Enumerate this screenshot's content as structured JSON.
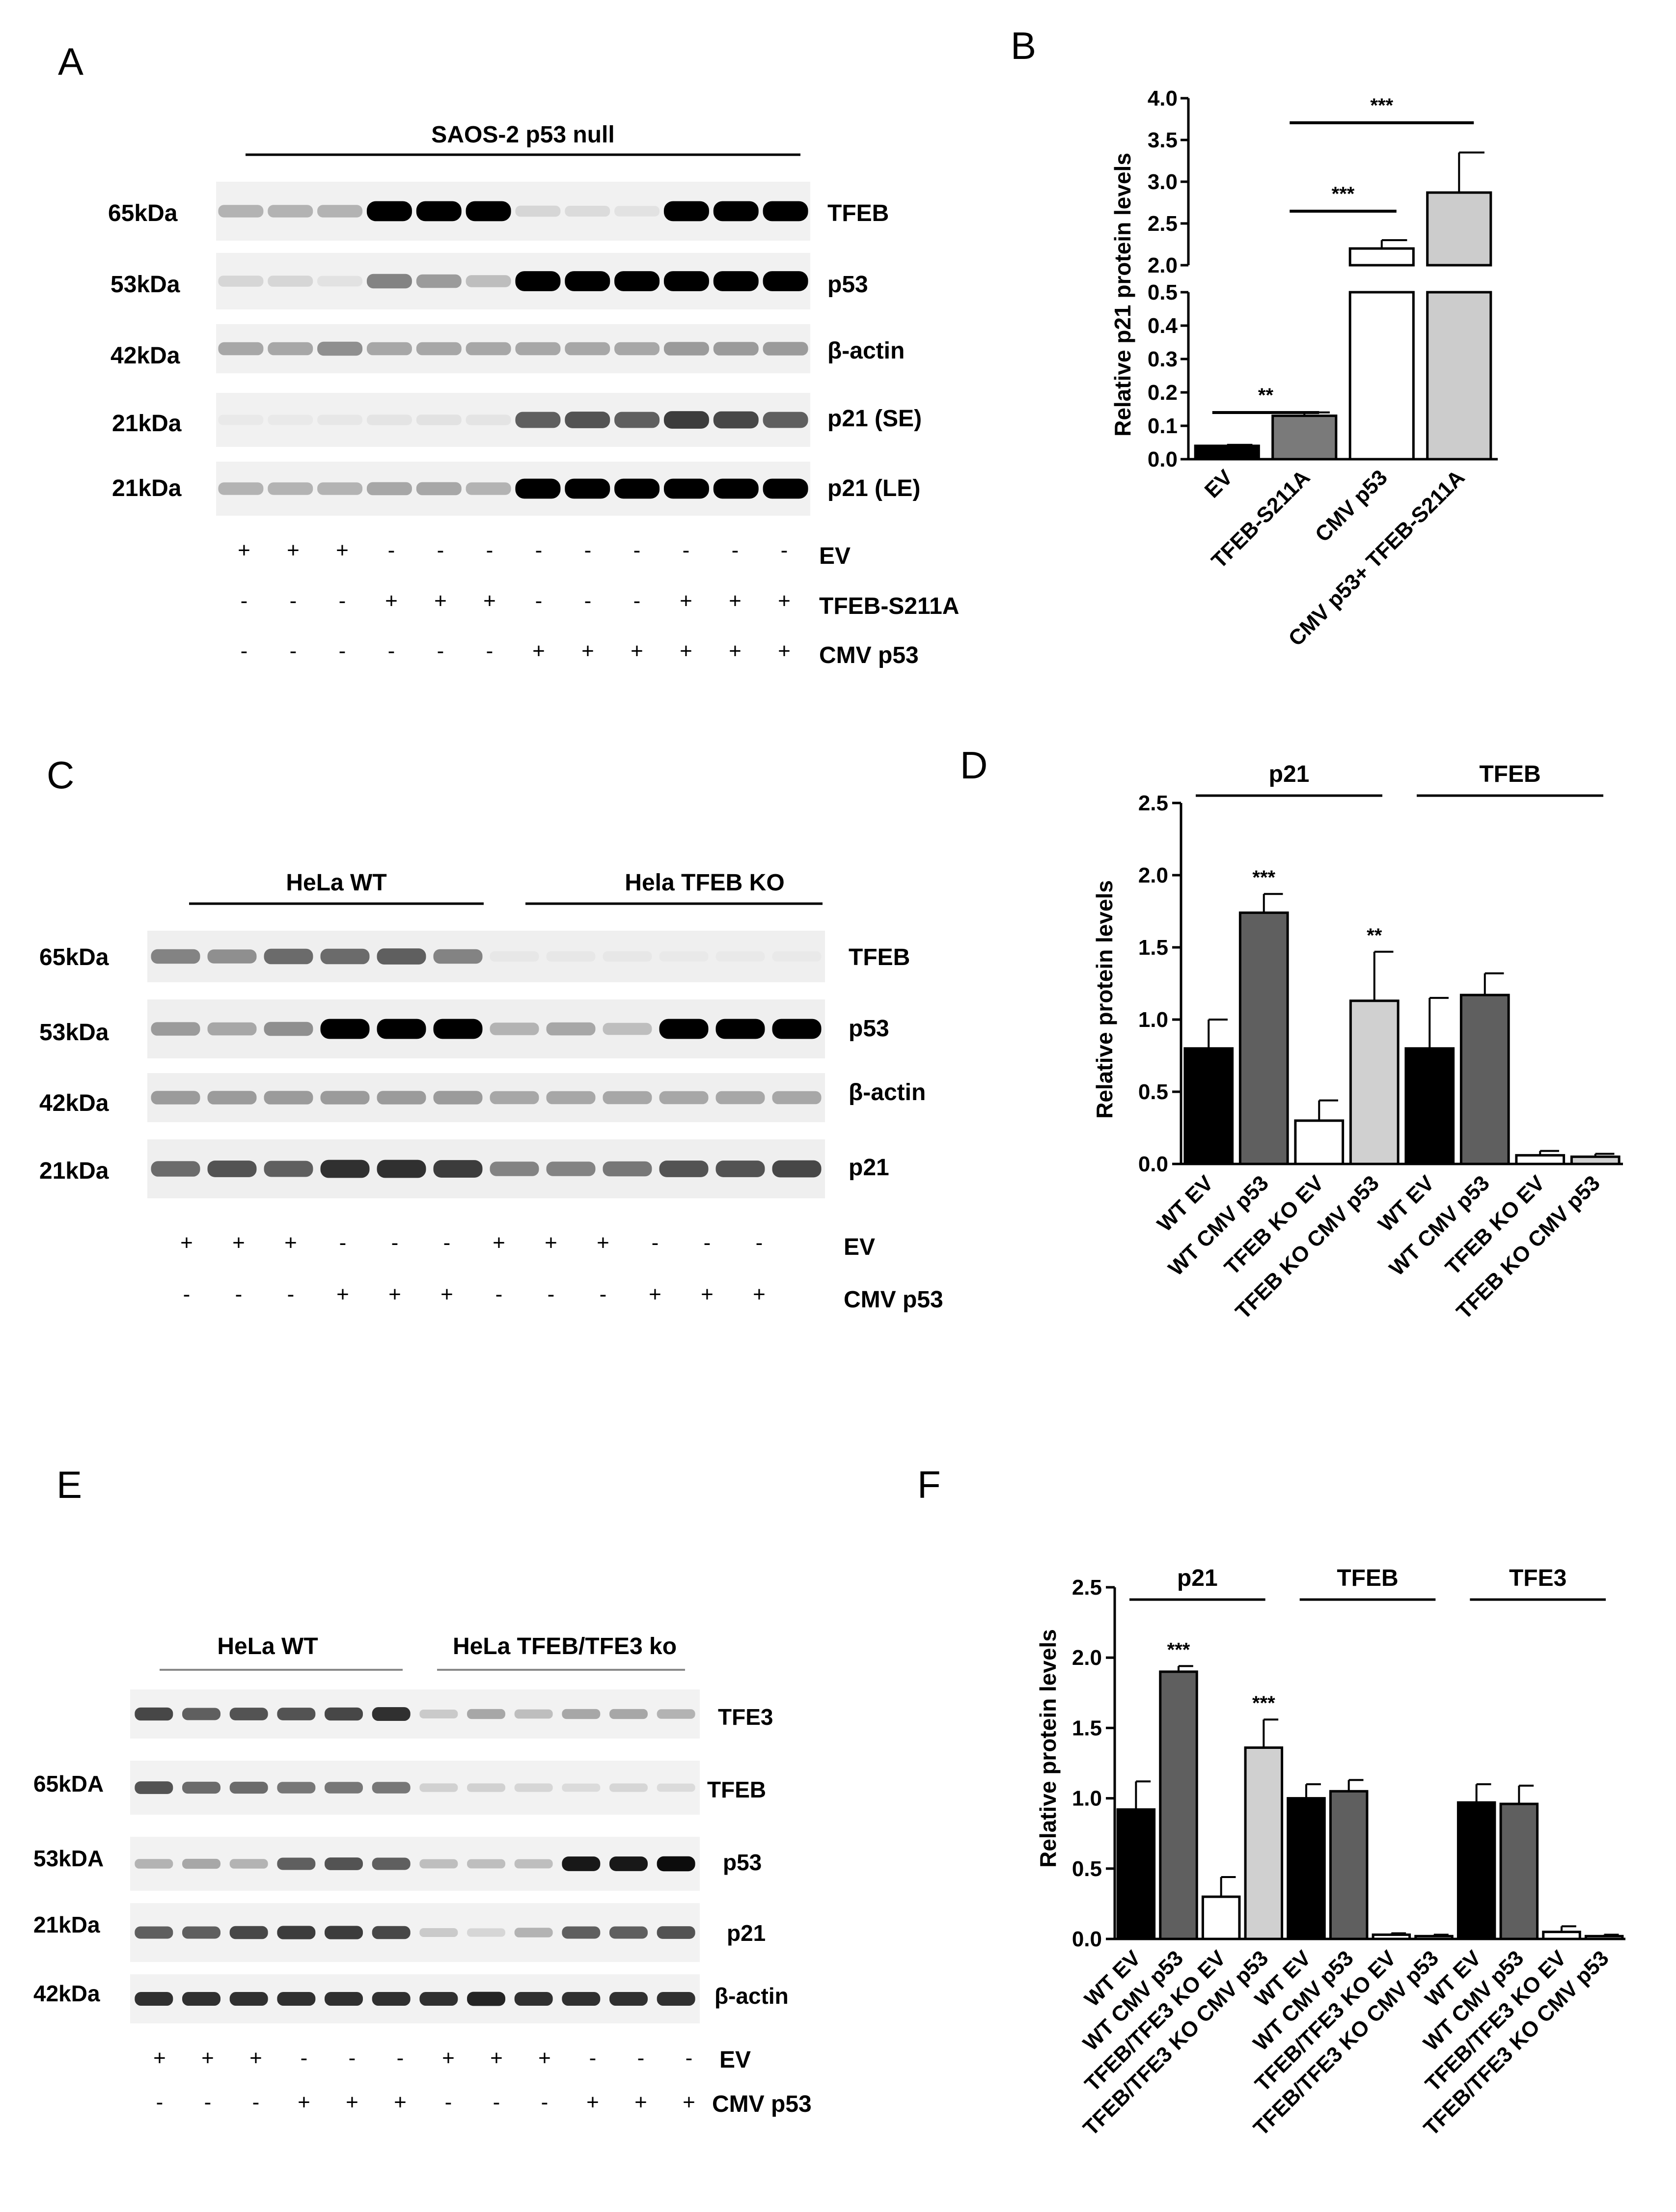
{
  "panels": {
    "A": {
      "letter": "A",
      "header": "SAOS-2 p53 null",
      "rows": [
        {
          "kda": "65kDa",
          "label": "TFEB"
        },
        {
          "kda": "53kDa",
          "label": "p53"
        },
        {
          "kda": "42kDa",
          "label": "β-actin"
        },
        {
          "kda": "21kDa",
          "label": "p21 (SE)"
        },
        {
          "kda": "21kDa",
          "label": "p21 (LE)"
        }
      ],
      "conditions": [
        {
          "label": "EV",
          "marks": [
            "+",
            "+",
            "+",
            "-",
            "-",
            "-",
            "-",
            "-",
            "-",
            "-",
            "-",
            "-"
          ]
        },
        {
          "label": "TFEB-S211A",
          "marks": [
            "-",
            "-",
            "-",
            "+",
            "+",
            "+",
            "-",
            "-",
            "-",
            "+",
            "+",
            "+"
          ]
        },
        {
          "label": "CMV p53",
          "marks": [
            "-",
            "-",
            "-",
            "-",
            "-",
            "-",
            "+",
            "+",
            "+",
            "+",
            "+",
            "+"
          ]
        }
      ],
      "bands": {
        "TFEB": [
          0.25,
          0.25,
          0.25,
          1,
          1,
          1,
          0.1,
          0.08,
          0.05,
          1,
          1,
          1
        ],
        "p53": [
          0.1,
          0.1,
          0.05,
          0.45,
          0.35,
          0.2,
          1,
          1,
          1,
          1,
          1,
          1
        ],
        "actin": [
          0.3,
          0.3,
          0.4,
          0.3,
          0.3,
          0.3,
          0.3,
          0.3,
          0.3,
          0.35,
          0.35,
          0.35
        ],
        "p21se": [
          0.02,
          0.02,
          0.03,
          0.04,
          0.05,
          0.04,
          0.6,
          0.65,
          0.6,
          0.75,
          0.7,
          0.6
        ],
        "p21le": [
          0.25,
          0.25,
          0.25,
          0.3,
          0.3,
          0.25,
          1,
          1,
          1,
          1,
          1,
          1
        ]
      }
    },
    "B": {
      "letter": "B",
      "chart_data": {
        "type": "bar",
        "categories": [
          "EV",
          "TFEB-S211A",
          "CMV p53",
          "CMV p53+ TFEB-S211A"
        ],
        "values": [
          0.04,
          0.13,
          2.2,
          2.87
        ],
        "errors": [
          0.003,
          0.01,
          0.1,
          0.48
        ],
        "colors": [
          "#000000",
          "#7a7a7a",
          "#ffffff",
          "#cccccc"
        ],
        "ylabel": "Relative p21 protein levels",
        "axis_break": {
          "lower": [
            0,
            0.5
          ],
          "upper": [
            2.0,
            4.0
          ]
        },
        "lower_ticks": [
          "0.0",
          "0.1",
          "0.2",
          "0.3",
          "0.4",
          "0.5"
        ],
        "upper_ticks": [
          "2.0",
          "2.5",
          "3.0",
          "3.5",
          "4.0"
        ],
        "significance": [
          {
            "from": "EV",
            "to": "TFEB-S211A",
            "label": "**"
          },
          {
            "from": "TFEB-S211A",
            "to": "CMV p53",
            "label": "***"
          },
          {
            "from": "TFEB-S211A",
            "to": "CMV p53+ TFEB-S211A",
            "label": "***"
          }
        ]
      }
    },
    "C": {
      "letter": "C",
      "groups": [
        "HeLa WT",
        "Hela TFEB KO"
      ],
      "rows": [
        {
          "kda": "65kDa",
          "label": "TFEB"
        },
        {
          "kda": "53kDa",
          "label": "p53"
        },
        {
          "kda": "42kDa",
          "label": "β-actin"
        },
        {
          "kda": "21kDa",
          "label": "p21"
        }
      ],
      "conditions": [
        {
          "label": "EV",
          "marks": [
            "+",
            "+",
            "+",
            "-",
            "-",
            "-",
            "+",
            "+",
            "+",
            "-",
            "-",
            "-"
          ]
        },
        {
          "label": "CMV p53",
          "marks": [
            "-",
            "-",
            "-",
            "+",
            "+",
            "+",
            "-",
            "-",
            "-",
            "+",
            "+",
            "+"
          ]
        }
      ],
      "bands": {
        "TFEB": [
          0.45,
          0.4,
          0.55,
          0.55,
          0.6,
          0.45,
          0.03,
          0.03,
          0.03,
          0.02,
          0.02,
          0.02
        ],
        "p53": [
          0.35,
          0.3,
          0.4,
          1,
          1,
          1,
          0.25,
          0.3,
          0.2,
          1,
          1,
          1
        ],
        "actin": [
          0.35,
          0.35,
          0.35,
          0.35,
          0.35,
          0.35,
          0.3,
          0.3,
          0.3,
          0.3,
          0.3,
          0.3
        ],
        "p21": [
          0.55,
          0.65,
          0.6,
          0.8,
          0.8,
          0.75,
          0.45,
          0.45,
          0.5,
          0.65,
          0.65,
          0.7
        ]
      }
    },
    "D": {
      "letter": "D",
      "group_labels": [
        "p21",
        "TFEB"
      ],
      "chart_data": {
        "type": "bar",
        "categories": [
          "WT EV",
          "WT CMV  p53",
          "TFEB KO EV",
          "TFEB KO CMV p53",
          "WT EV",
          "WT CMV  p53",
          "TFEB KO EV",
          "TFEB KO CMV p53"
        ],
        "values": [
          0.8,
          1.74,
          0.3,
          1.13,
          0.8,
          1.17,
          0.06,
          0.05
        ],
        "errors": [
          0.2,
          0.13,
          0.14,
          0.34,
          0.35,
          0.15,
          0.03,
          0.02
        ],
        "colors": [
          "#000000",
          "#5f5f5f",
          "#ffffff",
          "#d0d0d0",
          "#000000",
          "#5f5f5f",
          "#ffffff",
          "#d0d0d0"
        ],
        "significance": [
          "",
          "***",
          "",
          "**",
          "",
          "",
          "",
          ""
        ],
        "ylabel": "Relative protein levels",
        "ylim": [
          0,
          2.5
        ],
        "yticks": [
          "0.0",
          "0.5",
          "1.0",
          "1.5",
          "2.0",
          "2.5"
        ]
      }
    },
    "E": {
      "letter": "E",
      "groups": [
        "HeLa WT",
        "HeLa TFEB/TFE3 ko"
      ],
      "rows": [
        {
          "kda": "",
          "label": "TFE3"
        },
        {
          "kda": "65kDA",
          "label": "TFEB"
        },
        {
          "kda": "53kDA",
          "label": "p53"
        },
        {
          "kda": "21kDa",
          "label": "p21"
        },
        {
          "kda": "42kDa",
          "label": "β-actin"
        }
      ],
      "conditions": [
        {
          "label": "EV",
          "marks": [
            "+",
            "+",
            "+",
            "-",
            "-",
            "-",
            "+",
            "+",
            "+",
            "-",
            "-",
            "-"
          ]
        },
        {
          "label": "CMV p53",
          "marks": [
            "-",
            "-",
            "-",
            "+",
            "+",
            "+",
            "-",
            "-",
            "-",
            "+",
            "+",
            "+"
          ]
        }
      ],
      "bands": {
        "TFE3": [
          0.7,
          0.6,
          0.65,
          0.65,
          0.7,
          0.8,
          0.15,
          0.3,
          0.2,
          0.3,
          0.3,
          0.25
        ],
        "TFEB": [
          0.65,
          0.55,
          0.55,
          0.5,
          0.5,
          0.5,
          0.12,
          0.12,
          0.1,
          0.08,
          0.1,
          0.08
        ],
        "p53": [
          0.25,
          0.3,
          0.25,
          0.6,
          0.65,
          0.6,
          0.2,
          0.2,
          0.2,
          0.9,
          0.9,
          0.95
        ],
        "p21": [
          0.6,
          0.6,
          0.7,
          0.75,
          0.75,
          0.7,
          0.15,
          0.1,
          0.25,
          0.6,
          0.6,
          0.65
        ],
        "actin": [
          0.8,
          0.8,
          0.8,
          0.8,
          0.8,
          0.8,
          0.8,
          0.85,
          0.8,
          0.8,
          0.8,
          0.8
        ]
      }
    },
    "F": {
      "letter": "F",
      "group_labels": [
        "p21",
        "TFEB",
        "TFE3"
      ],
      "chart_data": {
        "type": "bar",
        "categories": [
          "WT EV",
          "WT CMV p53",
          "TFEB/TFE3 KO EV",
          "TFEB/TFE3 KO CMV p53",
          "WT EV",
          "WT CMV p53",
          "TFEB/TFE3 KO EV",
          "TFEB/TFE3 KO CMV p53",
          "WT EV",
          "WT CMV p53",
          "TFEB/TFE3 KO EV",
          "TFEB/TFE3 KO CMV p53"
        ],
        "values": [
          0.92,
          1.9,
          0.3,
          1.36,
          1.0,
          1.05,
          0.03,
          0.02,
          0.97,
          0.96,
          0.05,
          0.02
        ],
        "errors": [
          0.2,
          0.04,
          0.14,
          0.2,
          0.1,
          0.08,
          0.01,
          0.01,
          0.13,
          0.13,
          0.04,
          0.01
        ],
        "colors": [
          "#000000",
          "#5f5f5f",
          "#ffffff",
          "#d0d0d0",
          "#000000",
          "#5f5f5f",
          "#ffffff",
          "#d0d0d0",
          "#000000",
          "#5f5f5f",
          "#ffffff",
          "#d0d0d0"
        ],
        "significance": [
          "",
          "***",
          "",
          "***",
          "",
          "",
          "",
          "",
          "",
          "",
          "",
          ""
        ],
        "ylabel": "Relative protein levels",
        "ylim": [
          0,
          2.5
        ],
        "yticks": [
          "0.0",
          "0.5",
          "1.0",
          "1.5",
          "2.0",
          "2.5"
        ]
      }
    }
  }
}
